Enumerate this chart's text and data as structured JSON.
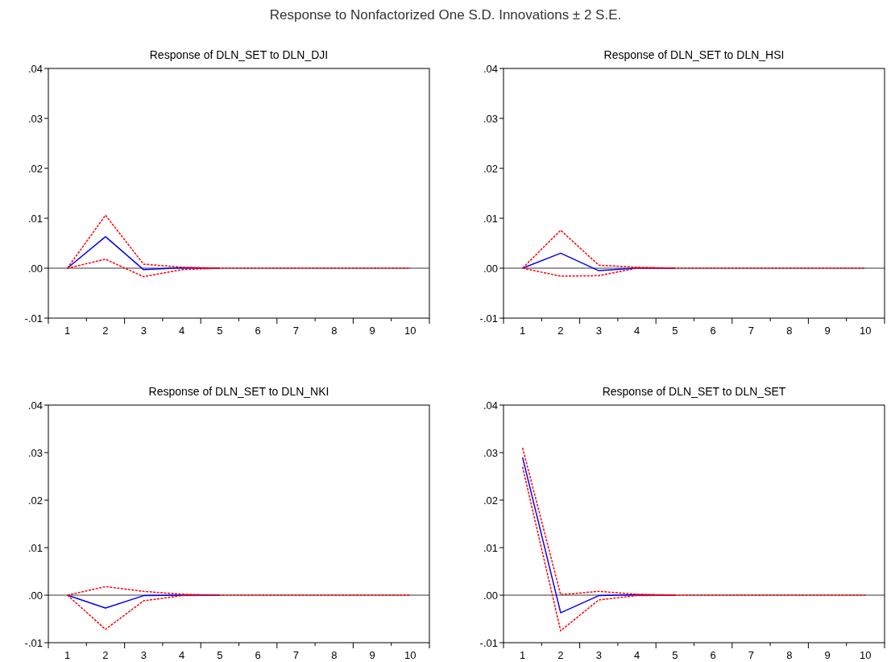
{
  "chart_data": [
    {
      "type": "line",
      "title": "Response of DLN_SET to DLN_DJI",
      "annotations": [
        "Response to Nonfactorized One S.D. Innovations ± 2 S.E."
      ],
      "categories": [
        "1",
        "2",
        "3",
        "4",
        "5",
        "6",
        "7",
        "8",
        "9",
        "10"
      ],
      "ylim": [
        -0.01,
        0.04
      ],
      "yticks": [
        {
          "value": -0.01,
          "label": "-.01"
        },
        {
          "value": 0,
          "label": ".00"
        },
        {
          "value": 0.01,
          "label": ".01"
        },
        {
          "value": 0.02,
          "label": ".02"
        },
        {
          "value": 0.03,
          "label": ".03"
        },
        {
          "value": 0.04,
          "label": ".04"
        }
      ],
      "ref_lines": [
        {
          "axis": "y",
          "value": 0,
          "color": "#000000"
        }
      ],
      "grid": false,
      "series": [
        {
          "color": "#0000ff",
          "line_style": "solid",
          "values": [
            0,
            0.0063,
            -0.0003,
            0.0001,
            0,
            null,
            null,
            null,
            null,
            null
          ]
        },
        {
          "color": "#ff0000",
          "line_style": "dashed",
          "values": [
            0,
            0.0106,
            0.0008,
            0.0002,
            0,
            null,
            null,
            null,
            null,
            null
          ]
        },
        {
          "color": "#ff0000",
          "line_style": "dashed",
          "values": [
            0,
            0.0018,
            -0.0017,
            -0.0003,
            0,
            0,
            0,
            0,
            0,
            0
          ]
        }
      ]
    },
    {
      "type": "line",
      "title": "Response of DLN_SET to DLN_HSI",
      "categories": [
        "1",
        "2",
        "3",
        "4",
        "5",
        "6",
        "7",
        "8",
        "9",
        "10"
      ],
      "ylim": [
        -0.01,
        0.04
      ],
      "yticks": [
        {
          "value": -0.01,
          "label": "-.01"
        },
        {
          "value": 0,
          "label": ".00"
        },
        {
          "value": 0.01,
          "label": ".01"
        },
        {
          "value": 0.02,
          "label": ".02"
        },
        {
          "value": 0.03,
          "label": ".03"
        },
        {
          "value": 0.04,
          "label": ".04"
        }
      ],
      "ref_lines": [
        {
          "axis": "y",
          "value": 0,
          "color": "#000000"
        }
      ],
      "grid": false,
      "series": [
        {
          "color": "#0000ff",
          "line_style": "solid",
          "values": [
            0,
            0.003,
            -0.0005,
            0,
            0,
            null,
            null,
            null,
            null,
            null
          ]
        },
        {
          "color": "#ff0000",
          "line_style": "dashed",
          "values": [
            0,
            0.0076,
            0.0006,
            0.0002,
            0,
            null,
            null,
            null,
            null,
            null
          ]
        },
        {
          "color": "#ff0000",
          "line_style": "dashed",
          "values": [
            0,
            -0.0016,
            -0.0015,
            0,
            0,
            0,
            0,
            0,
            0,
            0
          ]
        }
      ]
    },
    {
      "type": "line",
      "title": "Response of DLN_SET to DLN_NKI",
      "categories": [
        "1",
        "2",
        "3",
        "4",
        "5",
        "6",
        "7",
        "8",
        "9",
        "10"
      ],
      "ylim": [
        -0.01,
        0.04
      ],
      "yticks": [
        {
          "value": -0.01,
          "label": "-.01"
        },
        {
          "value": 0,
          "label": ".00"
        },
        {
          "value": 0.01,
          "label": ".01"
        },
        {
          "value": 0.02,
          "label": ".02"
        },
        {
          "value": 0.03,
          "label": ".03"
        },
        {
          "value": 0.04,
          "label": ".04"
        }
      ],
      "ref_lines": [
        {
          "axis": "y",
          "value": 0,
          "color": "#000000"
        }
      ],
      "grid": false,
      "series": [
        {
          "color": "#0000ff",
          "line_style": "solid",
          "values": [
            0,
            -0.0027,
            -0.0001,
            0,
            0,
            null,
            null,
            null,
            null,
            null
          ]
        },
        {
          "color": "#ff0000",
          "line_style": "dashed",
          "values": [
            0,
            0.0018,
            0.0008,
            0.0002,
            0,
            null,
            null,
            null,
            null,
            null
          ]
        },
        {
          "color": "#ff0000",
          "line_style": "dashed",
          "values": [
            0,
            -0.0072,
            -0.0012,
            -0.0001,
            0,
            0,
            0,
            0,
            0,
            0
          ]
        }
      ]
    },
    {
      "type": "line",
      "title": "Response of DLN_SET to DLN_SET",
      "categories": [
        "1",
        "2",
        "3",
        "4",
        "5",
        "6",
        "7",
        "8",
        "9",
        "10"
      ],
      "ylim": [
        -0.01,
        0.04
      ],
      "yticks": [
        {
          "value": -0.01,
          "label": "-.01"
        },
        {
          "value": 0,
          "label": ".00"
        },
        {
          "value": 0.01,
          "label": ".01"
        },
        {
          "value": 0.02,
          "label": ".02"
        },
        {
          "value": 0.03,
          "label": ".03"
        },
        {
          "value": 0.04,
          "label": ".04"
        }
      ],
      "ref_lines": [
        {
          "axis": "y",
          "value": 0,
          "color": "#000000"
        }
      ],
      "grid": false,
      "series": [
        {
          "color": "#0000ff",
          "line_style": "solid",
          "values": [
            0.029,
            -0.0037,
            -0.0001,
            0.0001,
            0,
            null,
            null,
            null,
            null,
            null
          ]
        },
        {
          "color": "#ff0000",
          "line_style": "dashed",
          "values": [
            0.031,
            0.0001,
            0.0008,
            0.0002,
            0,
            null,
            null,
            null,
            null,
            null
          ]
        },
        {
          "color": "#ff0000",
          "line_style": "dashed",
          "values": [
            0.027,
            -0.0075,
            -0.001,
            -0.0001,
            0,
            0,
            0,
            0,
            0,
            0
          ]
        }
      ]
    }
  ]
}
